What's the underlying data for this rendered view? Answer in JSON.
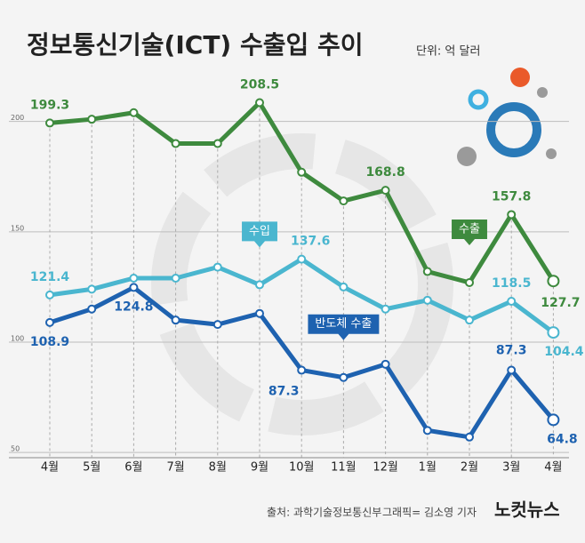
{
  "chart_data": {
    "type": "line",
    "title": "정보통신기술(ICT) 수출입 추이",
    "subtitle": "단위: 억 달러",
    "categories": [
      "4월",
      "5월",
      "6월",
      "7월",
      "8월",
      "9월",
      "10월",
      "11월",
      "12월",
      "1월",
      "2월",
      "3월",
      "4월"
    ],
    "ylim": [
      40,
      220
    ],
    "yticks": [
      50,
      100,
      150,
      200
    ],
    "grid": true,
    "series": [
      {
        "name": "수출",
        "color": "#3e8a3e",
        "values": [
          199.3,
          201,
          204,
          190,
          190,
          208.5,
          177,
          164,
          168.8,
          132,
          127,
          157.8,
          127.7
        ],
        "value_labels": [
          "199.3",
          null,
          null,
          null,
          null,
          "208.5",
          null,
          null,
          "168.8",
          null,
          null,
          "157.8",
          "127.7"
        ]
      },
      {
        "name": "수입",
        "color": "#4ab6cf",
        "values": [
          121.4,
          124,
          129,
          129,
          134,
          126,
          137.6,
          125,
          115,
          119,
          110,
          118.5,
          104.4
        ],
        "value_labels": [
          "121.4",
          null,
          null,
          null,
          null,
          null,
          "137.6",
          null,
          null,
          null,
          null,
          "118.5",
          "104.4"
        ]
      },
      {
        "name": "반도체 수출",
        "color": "#1e62b0",
        "values": [
          108.9,
          115,
          124.8,
          110,
          108,
          113,
          87.3,
          84,
          90,
          60,
          57,
          87.3,
          64.8
        ],
        "value_labels": [
          "108.9",
          null,
          "124.8",
          null,
          null,
          null,
          "87.3",
          null,
          null,
          null,
          null,
          "87.3",
          "64.8"
        ]
      }
    ]
  },
  "footer": {
    "source": "출처: 과학기술정보통신부",
    "credit": "그래픽= 김소영 기자",
    "logo": "노컷뉴스"
  }
}
